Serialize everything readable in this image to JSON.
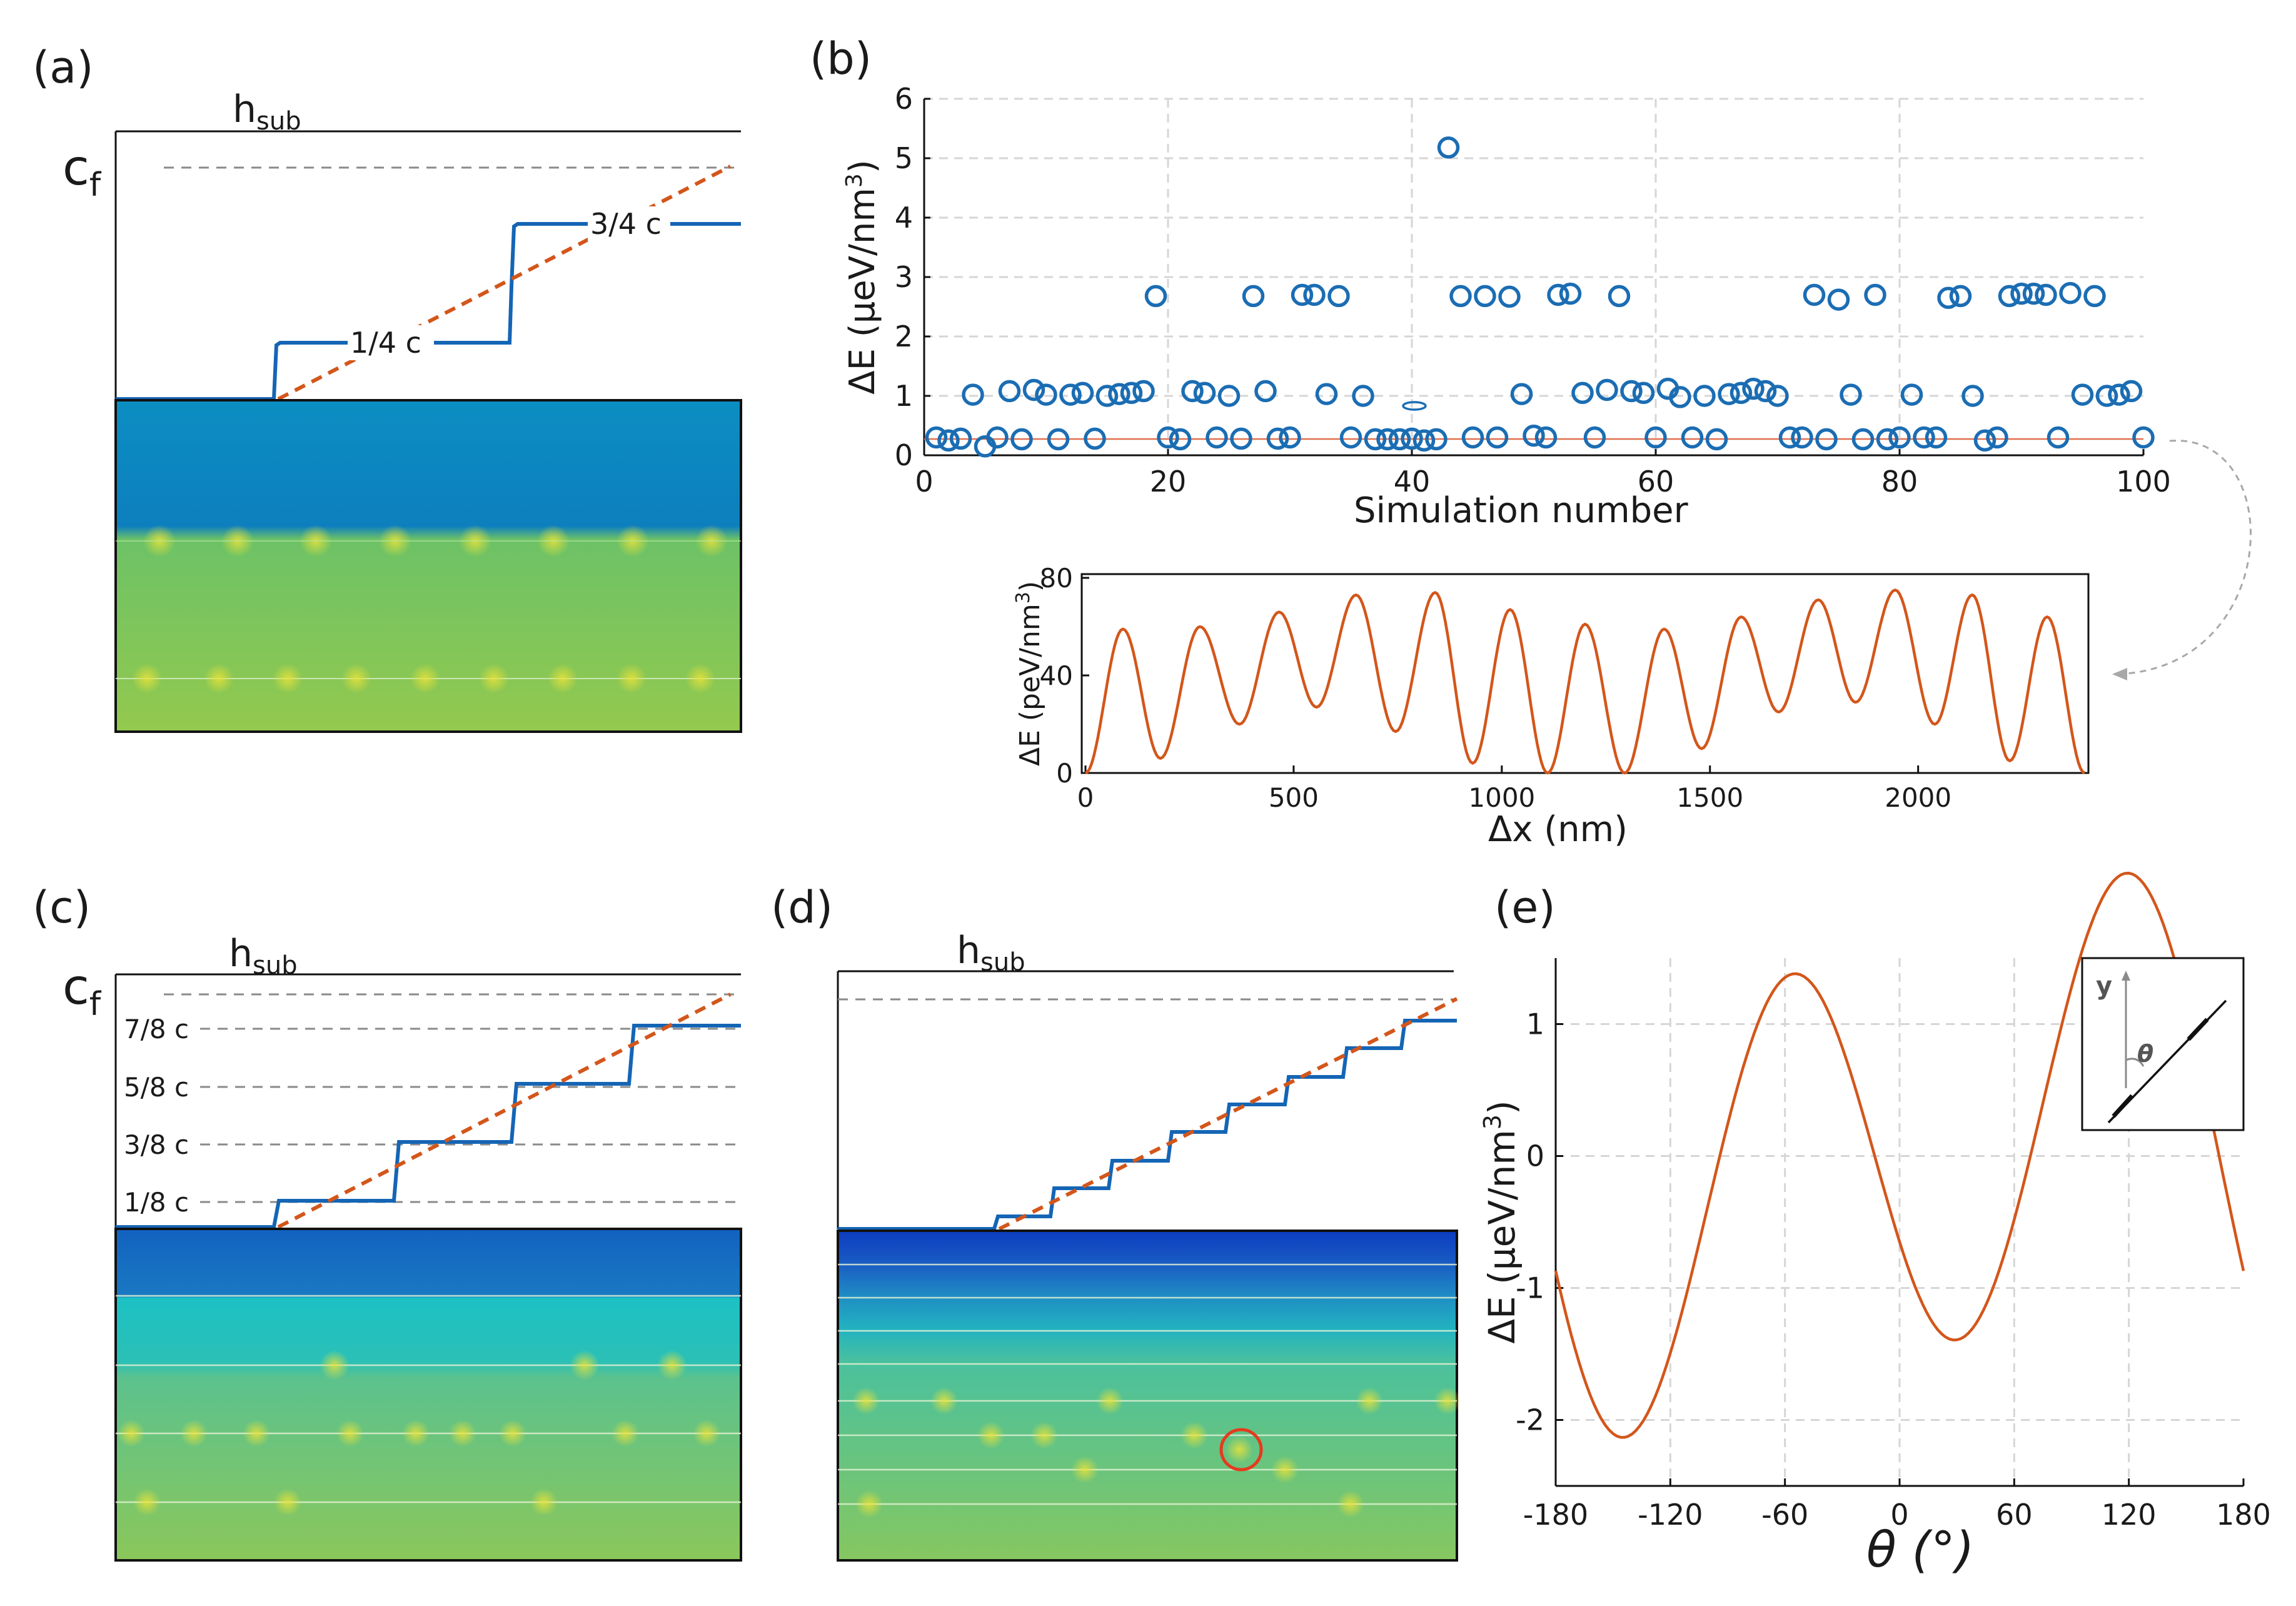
{
  "labels": {
    "a": "(a)",
    "b": "(b)",
    "c": "(c)",
    "d": "(d)",
    "e": "(e)"
  },
  "panel_a": {
    "h_label": "h",
    "h_sub": "sub",
    "c_label": "c",
    "c_sub": "f",
    "step_labels": [
      "1/4 c",
      "3/4 c"
    ]
  },
  "panel_c": {
    "h_label": "h",
    "h_sub": "sub",
    "c_label": "c",
    "c_sub": "f",
    "level_labels": [
      "7/8 c",
      "5/8 c",
      "3/8 c",
      "1/8 c"
    ]
  },
  "panel_d": {
    "h_label": "h",
    "h_sub": "sub"
  },
  "chart_data": [
    {
      "id": "b-main",
      "type": "scatter",
      "title": "",
      "xlabel": "Simulation number",
      "ylabel_prefix": "ΔE (μeV/nm",
      "ylabel_sup": "3",
      "ylabel_suffix": ")",
      "xlim": [
        0,
        100
      ],
      "ylim": [
        0,
        6
      ],
      "xticks": [
        0,
        20,
        40,
        60,
        80,
        100
      ],
      "yticks": [
        0,
        1,
        2,
        3,
        4,
        5,
        6
      ],
      "grid": true,
      "x": [
        1,
        2,
        3,
        4,
        5,
        6,
        7,
        8,
        9,
        10,
        11,
        12,
        13,
        14,
        15,
        16,
        17,
        18,
        19,
        20,
        21,
        22,
        23,
        24,
        25,
        26,
        27,
        28,
        29,
        30,
        31,
        32,
        33,
        34,
        35,
        36,
        37,
        38,
        39,
        40,
        41,
        42,
        43,
        44,
        45,
        46,
        47,
        48,
        49,
        50,
        51,
        52,
        53,
        54,
        55,
        56,
        57,
        58,
        59,
        60,
        61,
        62,
        63,
        64,
        65,
        66,
        67,
        68,
        69,
        70,
        71,
        72,
        73,
        74,
        75,
        76,
        77,
        78,
        79,
        80,
        81,
        82,
        83,
        84,
        85,
        86,
        87,
        88,
        89,
        90,
        91,
        92,
        93,
        94,
        95,
        96,
        97,
        98,
        99,
        100
      ],
      "y": [
        0.3,
        0.25,
        0.28,
        1.02,
        0.15,
        0.3,
        1.08,
        0.27,
        1.1,
        1.02,
        0.27,
        1.02,
        1.05,
        0.28,
        1.0,
        1.03,
        1.05,
        1.08,
        2.68,
        0.3,
        0.27,
        1.08,
        1.05,
        0.3,
        1.0,
        0.28,
        2.68,
        1.08,
        0.28,
        0.3,
        2.7,
        2.7,
        1.03,
        2.68,
        0.3,
        1.0,
        0.27,
        0.27,
        0.27,
        0.28,
        0.25,
        0.27,
        5.18,
        2.68,
        0.3,
        2.68,
        0.3,
        2.67,
        1.03,
        0.33,
        0.3,
        2.7,
        2.72,
        1.05,
        0.3,
        1.1,
        2.68,
        1.08,
        1.05,
        0.3,
        1.12,
        0.98,
        0.3,
        1.0,
        0.27,
        1.03,
        1.05,
        1.12,
        1.08,
        1.0,
        0.3,
        0.3,
        2.7,
        0.27,
        2.62,
        1.02,
        0.27,
        2.7,
        0.27,
        0.3,
        1.02,
        0.3,
        0.3,
        2.65,
        2.68,
        1.0,
        0.25,
        0.3,
        2.68,
        2.72,
        2.72,
        2.7,
        0.3,
        2.73,
        1.02,
        2.68,
        1.0,
        1.02,
        1.08,
        0.3
      ],
      "threshold_y": 0.27
    },
    {
      "id": "b-inset",
      "type": "line",
      "title": "",
      "xlabel": "Δx (nm)",
      "ylabel_prefix": "ΔE (peV/nm",
      "ylabel_sup": "3",
      "ylabel_suffix": ")",
      "xlim": [
        0,
        2400
      ],
      "ylim": [
        0,
        80
      ],
      "xticks": [
        0,
        500,
        1000,
        1500,
        2000
      ],
      "yticks": [
        0,
        40,
        80
      ],
      "peaks": [
        [
          90,
          59
        ],
        [
          275,
          60
        ],
        [
          465,
          66
        ],
        [
          650,
          73
        ],
        [
          840,
          74
        ],
        [
          1020,
          67
        ],
        [
          1200,
          61
        ],
        [
          1390,
          59
        ],
        [
          1575,
          64
        ],
        [
          1760,
          71
        ],
        [
          1945,
          75
        ],
        [
          2130,
          73
        ],
        [
          2310,
          64
        ]
      ],
      "troughs": [
        [
          0,
          0
        ],
        [
          180,
          6
        ],
        [
          370,
          20
        ],
        [
          555,
          27
        ],
        [
          745,
          17
        ],
        [
          930,
          4
        ],
        [
          1110,
          0
        ],
        [
          1295,
          0
        ],
        [
          1480,
          10
        ],
        [
          1665,
          25
        ],
        [
          1850,
          29
        ],
        [
          2040,
          20
        ],
        [
          2220,
          5
        ],
        [
          2400,
          0
        ]
      ]
    },
    {
      "id": "e",
      "type": "line",
      "title": "",
      "xlabel": "θ (°)",
      "ylabel_prefix": "ΔE (μeV/nm",
      "ylabel_sup": "3",
      "ylabel_suffix": ")",
      "xlim": [
        -180,
        180
      ],
      "ylim": [
        -2.5,
        1.5
      ],
      "xticks": [
        -180,
        -120,
        -60,
        0,
        60,
        120,
        180
      ],
      "yticks": [
        1,
        0,
        -1,
        -2
      ],
      "grid": true,
      "coefficients": {
        "a1": 0.52,
        "b1": 0.11,
        "a2": -1.58,
        "b2": -0.76
      },
      "inset_axis_label": "y",
      "inset_angle_label": "θ"
    }
  ]
}
